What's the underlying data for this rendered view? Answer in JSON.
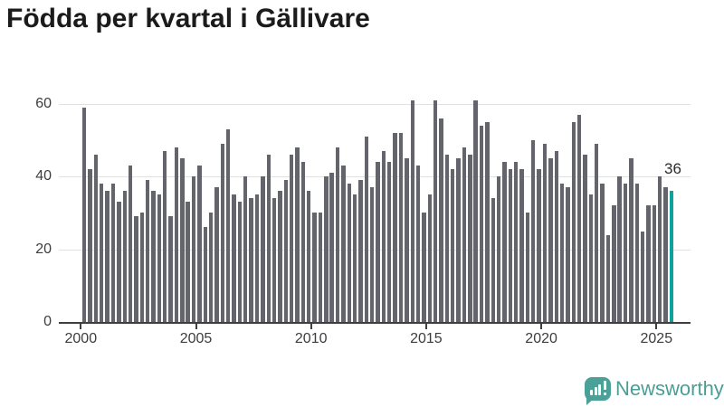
{
  "title": "Födda per kvartal i Gällivare",
  "annotation": {
    "label": "36"
  },
  "footer": {
    "brand": "Newsworthy"
  },
  "colors": {
    "bar": "#64646c",
    "highlight": "#0ca39c",
    "gridline": "#e1e1e1",
    "axis": "#3f3f3f",
    "tick_text": "#3d3d3d",
    "title_text": "#1b1b1b",
    "brand_teal": "#4aa197"
  },
  "chart_data": {
    "type": "bar",
    "title": "Födda per kvartal i Gällivare",
    "frequency": "quarterly",
    "x_start": "2000 Q1",
    "x_end": "2025 Q3",
    "x_tick_labels": [
      "2000",
      "2005",
      "2010",
      "2015",
      "2020",
      "2025"
    ],
    "y_ticks": [
      0,
      20,
      40,
      60
    ],
    "ylim": [
      0,
      62
    ],
    "grid": "horizontal",
    "legend": "none",
    "bar_color": "#64646c",
    "highlight_color": "#0ca39c",
    "highlight_index": 102,
    "highlight_label": "36",
    "series": [
      {
        "name": "Födda per kvartal",
        "values": [
          59,
          42,
          46,
          38,
          36,
          38,
          33,
          36,
          43,
          29,
          30,
          39,
          36,
          35,
          47,
          29,
          48,
          45,
          33,
          40,
          43,
          26,
          30,
          37,
          49,
          53,
          35,
          33,
          40,
          34,
          35,
          40,
          46,
          34,
          36,
          39,
          46,
          48,
          44,
          36,
          30,
          30,
          40,
          41,
          48,
          43,
          38,
          35,
          39,
          51,
          37,
          44,
          47,
          44,
          52,
          52,
          45,
          61,
          43,
          30,
          35,
          61,
          56,
          46,
          42,
          45,
          48,
          46,
          61,
          54,
          55,
          34,
          40,
          44,
          42,
          44,
          42,
          30,
          50,
          42,
          49,
          45,
          47,
          38,
          37,
          55,
          57,
          46,
          35,
          49,
          38,
          24,
          32,
          40,
          38,
          45,
          38,
          25,
          32,
          32,
          40,
          37,
          36
        ]
      }
    ]
  }
}
